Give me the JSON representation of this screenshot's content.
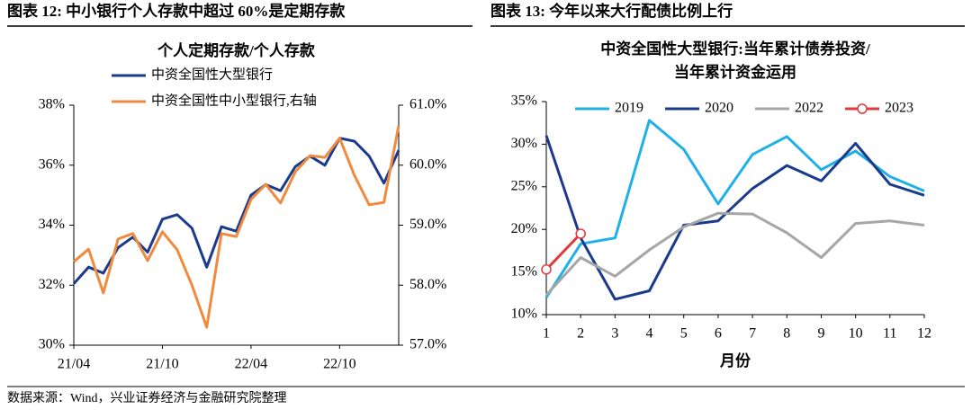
{
  "header_left": "图表 12:  中小银行个人存款中超过 60%是定期存款",
  "header_right": "图表 13:  今年以来大行配债比例上行",
  "source": "数据来源：Wind，兴业证券经济与金融研究院整理",
  "chart_data": [
    {
      "type": "line",
      "title": "个人定期存款/个人存款",
      "legend": "top-left",
      "categories": [
        "21/04",
        null,
        null,
        null,
        null,
        null,
        "21/10",
        null,
        null,
        null,
        null,
        null,
        "22/04",
        null,
        null,
        null,
        null,
        null,
        "22/10",
        null,
        null,
        null,
        null
      ],
      "series": [
        {
          "name": "中资全国性大型银行",
          "color": "#1a3a8c",
          "values": [
            32.05,
            32.6,
            32.4,
            33.25,
            33.6,
            33.1,
            34.2,
            34.35,
            33.9,
            32.6,
            33.95,
            33.8,
            35.0,
            35.35,
            35.15,
            35.95,
            36.3,
            36.0,
            36.9,
            36.8,
            36.3,
            35.4,
            36.5
          ]
        },
        {
          "name": "中资全国性中小型银行,右轴",
          "color": "#f08a3c",
          "axis": "y2",
          "values": [
            58.39,
            58.6,
            57.87,
            58.77,
            58.86,
            58.41,
            58.89,
            58.59,
            58.0,
            57.3,
            58.86,
            58.81,
            59.43,
            59.68,
            59.37,
            59.89,
            60.16,
            60.13,
            60.45,
            59.83,
            59.34,
            59.38,
            60.66
          ]
        }
      ],
      "ylim": [
        30,
        38
      ],
      "yticks": [
        {
          "value": 30,
          "label": "30%"
        },
        {
          "value": 32,
          "label": "32%"
        },
        {
          "value": 34,
          "label": "34%"
        },
        {
          "value": 36,
          "label": "36%"
        },
        {
          "value": 38,
          "label": "38%"
        }
      ],
      "y2lim": [
        57,
        61
      ],
      "y2ticks": [
        {
          "value": 57,
          "label": "57.0%"
        },
        {
          "value": 58,
          "label": "58.0%"
        },
        {
          "value": 59,
          "label": "59.0%"
        },
        {
          "value": 60,
          "label": "60.0%"
        },
        {
          "value": 61,
          "label": "61.0%"
        }
      ],
      "grid": false
    },
    {
      "type": "line",
      "title": [
        "中资全国性大型银行:当年累计债券投资/",
        "当年累计资金运用"
      ],
      "legend": "top",
      "x_label": "月份",
      "categories": [
        "1",
        "2",
        "3",
        "4",
        "5",
        "6",
        "7",
        "8",
        "9",
        "10",
        "11",
        "12"
      ],
      "series": [
        {
          "name": "2019",
          "color": "#1fb0e8",
          "values": [
            12.0,
            18.3,
            19.0,
            32.8,
            29.4,
            23.0,
            28.8,
            30.9,
            27.0,
            29.2,
            26.2,
            24.5
          ]
        },
        {
          "name": "2020",
          "color": "#1a3a8c",
          "values": [
            31.0,
            19.0,
            11.8,
            12.8,
            20.5,
            21.0,
            24.8,
            27.5,
            25.7,
            30.1,
            25.3,
            24.0
          ]
        },
        {
          "name": "2022",
          "color": "#a6a6a6",
          "values": [
            12.3,
            16.7,
            14.5,
            17.6,
            20.3,
            21.9,
            21.8,
            19.6,
            16.7,
            20.7,
            21.0,
            20.5
          ]
        },
        {
          "name": "2023",
          "color": "#e03a3a",
          "markers": true,
          "values": [
            15.3,
            19.5,
            null,
            null,
            null,
            null,
            null,
            null,
            null,
            null,
            null,
            null
          ]
        }
      ],
      "ylim": [
        10,
        35
      ],
      "yticks": [
        {
          "value": 10,
          "label": "10%"
        },
        {
          "value": 15,
          "label": "15%"
        },
        {
          "value": 20,
          "label": "20%"
        },
        {
          "value": 25,
          "label": "25%"
        },
        {
          "value": 30,
          "label": "30%"
        },
        {
          "value": 35,
          "label": "35%"
        }
      ],
      "grid": false
    }
  ]
}
